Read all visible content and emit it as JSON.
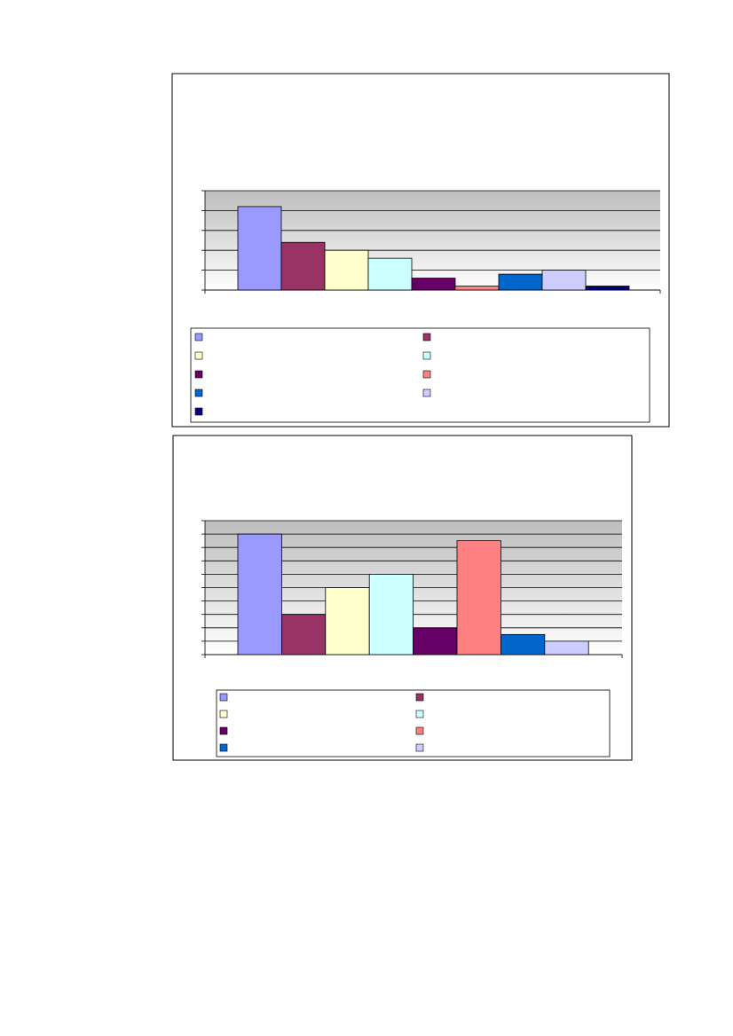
{
  "chart_data": [
    {
      "type": "bar",
      "categories": [
        null
      ],
      "ylim": [
        0,
        5
      ],
      "yticks": [
        0,
        1,
        2,
        3,
        4,
        5
      ],
      "grid": true,
      "series": [
        {
          "color": "#9999ff",
          "values": [
            4.2
          ]
        },
        {
          "color": "#993366",
          "values": [
            2.4
          ]
        },
        {
          "color": "#ffffcc",
          "values": [
            2.0
          ]
        },
        {
          "color": "#ccffff",
          "values": [
            1.6
          ]
        },
        {
          "color": "#660066",
          "values": [
            0.6
          ]
        },
        {
          "color": "#ff8080",
          "values": [
            0.2
          ]
        },
        {
          "color": "#0066cc",
          "values": [
            0.8
          ]
        },
        {
          "color": "#ccccff",
          "values": [
            1.0
          ]
        },
        {
          "color": "#000080",
          "values": [
            0.2
          ]
        }
      ]
    },
    {
      "type": "bar",
      "categories": [
        null
      ],
      "ylim": [
        0,
        10
      ],
      "yticks": [
        0,
        1,
        2,
        3,
        4,
        5,
        6,
        7,
        8,
        9,
        10
      ],
      "grid": true,
      "series": [
        {
          "color": "#9999ff",
          "values": [
            9
          ]
        },
        {
          "color": "#993366",
          "values": [
            3
          ]
        },
        {
          "color": "#ffffcc",
          "values": [
            5
          ]
        },
        {
          "color": "#ccffff",
          "values": [
            6
          ]
        },
        {
          "color": "#660066",
          "values": [
            2
          ]
        },
        {
          "color": "#ff8080",
          "values": [
            8.5
          ]
        },
        {
          "color": "#0066cc",
          "values": [
            1.5
          ]
        },
        {
          "color": "#ccccff",
          "values": [
            1.0
          ]
        }
      ]
    }
  ]
}
